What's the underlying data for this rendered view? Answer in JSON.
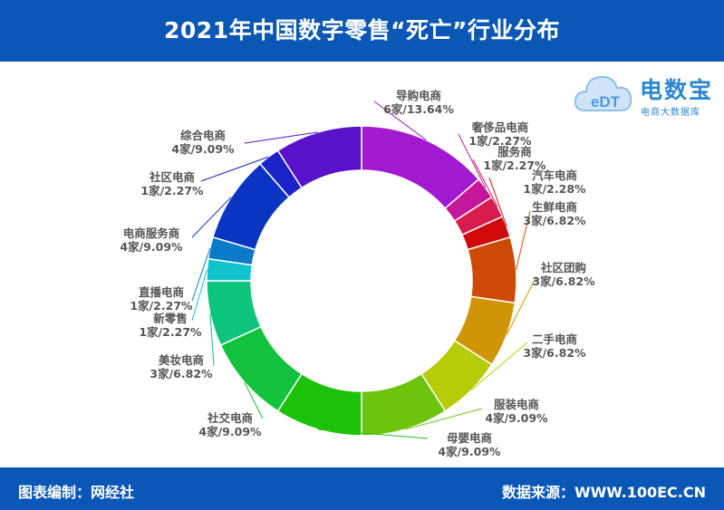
{
  "header": {
    "title": "2021年中国数字零售“死亡”行业分布"
  },
  "logo": {
    "name": "电数宝",
    "sub": "电商大数据库",
    "mark": "eDT",
    "mark_color": "#7fb6e6",
    "accent": "#2e86d6"
  },
  "footer": {
    "left": "图表编制：网经社",
    "right": "数据来源：WWW.100EC.CN"
  },
  "colors": {
    "header_bg": "#0a57b6",
    "label_text": "#555555"
  },
  "chart_data": {
    "type": "pie",
    "variant": "donut",
    "title": "2021年中国数字零售“死亡”行业分布",
    "unit": "家",
    "legend": "none",
    "slices": [
      {
        "name": "导购电商",
        "count": 6,
        "percent": 13.64,
        "label": "6家/13.64%",
        "color": "#a21ad0"
      },
      {
        "name": "奢侈品电商",
        "count": 1,
        "percent": 2.27,
        "label": "1家/2.27%",
        "color": "#c4179a"
      },
      {
        "name": "服务商",
        "count": 1,
        "percent": 2.27,
        "label": "1家/2.27%",
        "color": "#d81b4e"
      },
      {
        "name": "汽车电商",
        "count": 1,
        "percent": 2.28,
        "label": "1家/2.28%",
        "color": "#cf0a0a"
      },
      {
        "name": "生鲜电商",
        "count": 3,
        "percent": 6.82,
        "label": "3家/6.82%",
        "color": "#cc4a04"
      },
      {
        "name": "社区团购",
        "count": 3,
        "percent": 6.82,
        "label": "3家/6.82%",
        "color": "#cf9506"
      },
      {
        "name": "二手电商",
        "count": 3,
        "percent": 6.82,
        "label": "3家/6.82%",
        "color": "#b6cc06"
      },
      {
        "name": "服装电商",
        "count": 4,
        "percent": 9.09,
        "label": "4家/9.09%",
        "color": "#6cc40c"
      },
      {
        "name": "母婴电商",
        "count": 4,
        "percent": 9.09,
        "label": "4家/9.09%",
        "color": "#1cc20a"
      },
      {
        "name": "社交电商",
        "count": 4,
        "percent": 9.09,
        "label": "4家/9.09%",
        "color": "#12c23c"
      },
      {
        "name": "美妆电商",
        "count": 3,
        "percent": 6.82,
        "label": "3家/6.82%",
        "color": "#0cc47c"
      },
      {
        "name": "新零售",
        "count": 1,
        "percent": 2.27,
        "label": "1家/2.27%",
        "color": "#12c3cc"
      },
      {
        "name": "直播电商",
        "count": 1,
        "percent": 2.27,
        "label": "1家/2.27%",
        "color": "#0b7ac9"
      },
      {
        "name": "电商服务商",
        "count": 4,
        "percent": 9.09,
        "label": "4家/9.09%",
        "color": "#0a35c2"
      },
      {
        "name": "社区电商",
        "count": 1,
        "percent": 2.27,
        "label": "1家/2.27%",
        "color": "#1a22c8"
      },
      {
        "name": "综合电商",
        "count": 4,
        "percent": 9.09,
        "label": "4家/9.09%",
        "color": "#5a12c8"
      }
    ]
  }
}
